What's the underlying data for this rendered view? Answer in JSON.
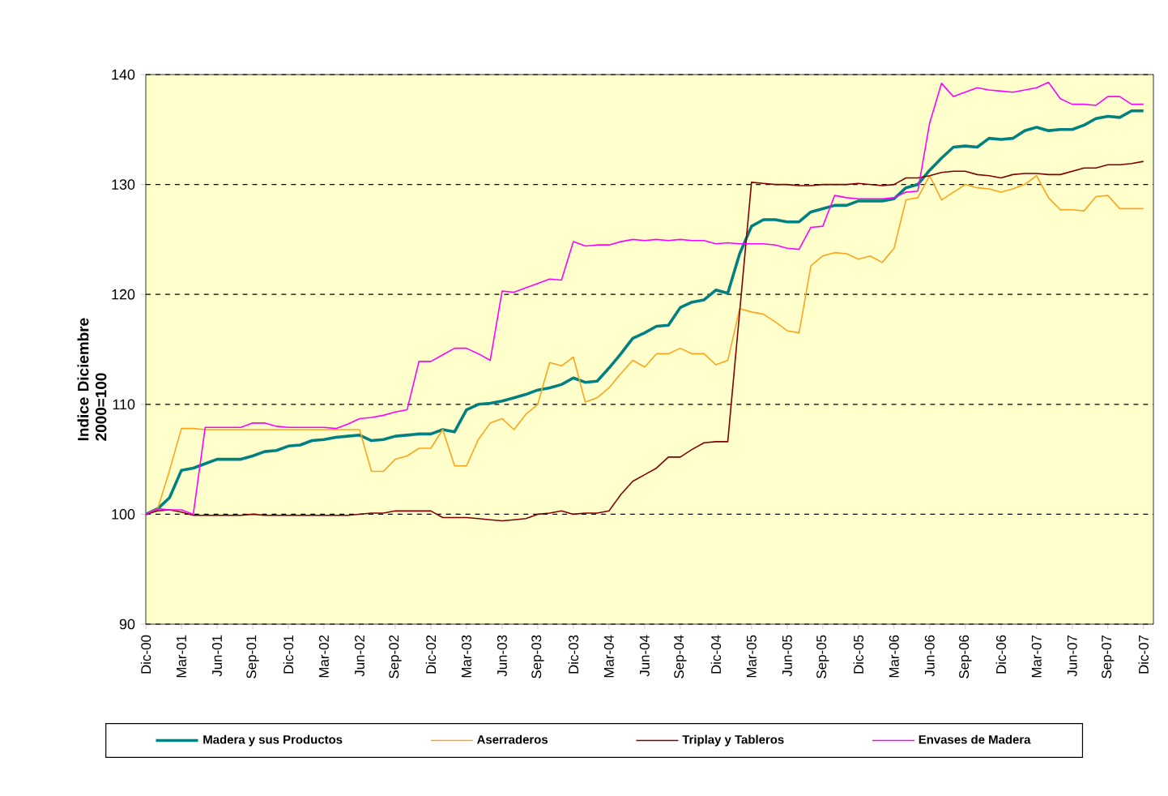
{
  "chart_data": {
    "type": "line",
    "ylabel": "Indice Diciembre 2000=100",
    "categories": [
      "Dic-00",
      null,
      null,
      "Mar-01",
      null,
      null,
      "Jun-01",
      null,
      null,
      "Sep-01",
      null,
      null,
      "Dic-01",
      null,
      null,
      "Mar-02",
      null,
      null,
      "Jun-02",
      null,
      null,
      "Sep-02",
      null,
      null,
      "Dic-02",
      null,
      null,
      "Mar-03",
      null,
      null,
      "Jun-03",
      null,
      null,
      "Sep-03",
      null,
      null,
      "Dic-03",
      null,
      null,
      "Mar-04",
      null,
      null,
      "Jun-04",
      null,
      null,
      "Sep-04",
      null,
      null,
      "Dic-04",
      null,
      null,
      "Mar-05",
      null,
      null,
      "Jun-05",
      null,
      null,
      "Sep-05",
      null,
      null,
      "Dic-05",
      null,
      null,
      "Mar-06",
      null,
      null,
      "Jun-06",
      null,
      null,
      "Sep-06",
      null,
      null,
      "Dic-06",
      null,
      null,
      "Mar-07",
      null,
      null,
      "Jun-07",
      null,
      null,
      "Sep-07",
      null,
      null,
      "Dic-07"
    ],
    "series": [
      {
        "name": "Madera y sus Productos",
        "color": "#008080",
        "values": [
          100,
          100.5,
          101.5,
          104.0,
          104.2,
          104.6,
          105.0,
          105.0,
          105.0,
          105.3,
          105.7,
          105.8,
          106.2,
          106.3,
          106.7,
          106.8,
          107.0,
          107.1,
          107.2,
          106.7,
          106.8,
          107.1,
          107.2,
          107.3,
          107.3,
          107.7,
          107.5,
          109.5,
          110.0,
          110.1,
          110.3,
          110.6,
          110.9,
          111.3,
          111.5,
          111.8,
          112.4,
          112.0,
          112.1,
          113.3,
          114.6,
          116.0,
          116.5,
          117.1,
          117.2,
          118.8,
          119.3,
          119.5,
          120.4,
          120.1,
          123.7,
          126.2,
          126.8,
          126.8,
          126.6,
          126.6,
          127.5,
          127.8,
          128.1,
          128.1,
          128.5,
          128.5,
          128.5,
          128.7,
          129.7,
          130.0,
          131.3,
          132.4,
          133.4,
          133.5,
          133.4,
          134.2,
          134.1,
          134.2,
          134.9,
          135.2,
          134.9,
          135.0,
          135.0,
          135.4,
          136.0,
          136.2,
          136.1,
          136.7,
          136.7
        ]
      },
      {
        "name": "Aserraderos",
        "color": "#ffa31a",
        "values": [
          100,
          100.5,
          104.0,
          107.8,
          107.8,
          107.7,
          107.7,
          107.7,
          107.7,
          107.7,
          107.7,
          107.7,
          107.7,
          107.7,
          107.7,
          107.7,
          107.7,
          107.7,
          107.7,
          103.9,
          103.9,
          105.0,
          105.3,
          106.0,
          106.0,
          107.7,
          104.4,
          104.4,
          106.8,
          108.3,
          108.7,
          107.7,
          109.1,
          110.0,
          113.8,
          113.5,
          114.3,
          110.2,
          110.6,
          111.5,
          112.8,
          114.0,
          113.4,
          114.6,
          114.6,
          115.1,
          114.6,
          114.6,
          113.6,
          114.0,
          118.7,
          118.4,
          118.2,
          117.5,
          116.7,
          116.5,
          122.6,
          123.5,
          123.8,
          123.7,
          123.2,
          123.5,
          122.9,
          124.2,
          128.6,
          128.8,
          130.8,
          128.6,
          129.3,
          130.0,
          129.7,
          129.6,
          129.3,
          129.6,
          130.0,
          130.8,
          128.8,
          127.7,
          127.7,
          127.6,
          128.9,
          129.0,
          127.8,
          127.8,
          127.8
        ]
      },
      {
        "name": "Triplay y Tableros",
        "color": "#800000",
        "values": [
          100,
          100.3,
          100.4,
          100.2,
          99.9,
          99.9,
          99.9,
          99.9,
          99.9,
          100.0,
          99.9,
          99.9,
          99.9,
          99.9,
          99.9,
          99.9,
          99.9,
          99.9,
          100.0,
          100.1,
          100.1,
          100.3,
          100.3,
          100.3,
          100.3,
          99.7,
          99.7,
          99.7,
          99.6,
          99.5,
          99.4,
          99.5,
          99.6,
          100.0,
          100.1,
          100.3,
          100.0,
          100.1,
          100.1,
          100.3,
          101.8,
          103.0,
          103.6,
          104.2,
          105.2,
          105.2,
          105.9,
          106.5,
          106.6,
          106.6,
          118.4,
          130.2,
          130.1,
          130.0,
          130.0,
          129.9,
          129.9,
          130.0,
          130.0,
          130.0,
          130.1,
          130.0,
          129.9,
          130.0,
          130.6,
          130.6,
          130.8,
          131.1,
          131.2,
          131.2,
          130.9,
          130.8,
          130.6,
          130.9,
          131.0,
          131.0,
          130.9,
          130.9,
          131.2,
          131.5,
          131.5,
          131.8,
          131.8,
          131.9,
          132.1
        ]
      },
      {
        "name": "Envases de Madera",
        "color": "#ff00ff",
        "values": [
          100,
          100.5,
          100.4,
          100.4,
          100.0,
          107.9,
          107.9,
          107.9,
          107.9,
          108.3,
          108.3,
          108.0,
          107.9,
          107.9,
          107.9,
          107.9,
          107.8,
          108.2,
          108.7,
          108.8,
          109.0,
          109.3,
          109.5,
          113.9,
          113.9,
          114.5,
          115.1,
          115.1,
          114.6,
          114.0,
          120.3,
          120.2,
          120.6,
          121.0,
          121.4,
          121.3,
          124.8,
          124.4,
          124.5,
          124.5,
          124.8,
          125.0,
          124.9,
          125.0,
          124.9,
          125.0,
          124.9,
          124.9,
          124.6,
          124.7,
          124.6,
          124.6,
          124.6,
          124.5,
          124.2,
          124.1,
          126.1,
          126.2,
          129.0,
          128.8,
          128.7,
          128.7,
          128.7,
          128.8,
          129.3,
          129.4,
          135.6,
          139.2,
          138.0,
          138.4,
          138.8,
          138.6,
          138.5,
          138.4,
          138.6,
          138.8,
          139.3,
          137.8,
          137.3,
          137.3,
          137.2,
          138.0,
          138.0,
          137.3,
          137.3
        ]
      }
    ],
    "ylim": [
      90,
      140
    ],
    "yticks": [
      90,
      100,
      110,
      120,
      130,
      140
    ],
    "grid": "y",
    "legend": "bottom",
    "marker": "none",
    "line_style": "solid"
  }
}
